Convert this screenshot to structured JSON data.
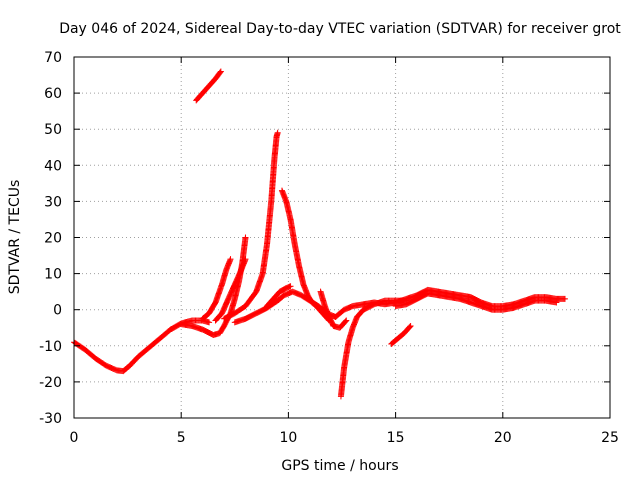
{
  "chart_data": {
    "type": "scatter",
    "title": "Day 046 of 2024, Sidereal Day-to-day VTEC variation (SDTVAR) for receiver grot",
    "xlabel": "GPS time / hours",
    "ylabel": "SDTVAR / TECUs",
    "xlim": [
      0,
      25
    ],
    "ylim": [
      -30,
      70
    ],
    "xticks": [
      0,
      5,
      10,
      15,
      20,
      25
    ],
    "yticks": [
      -30,
      -20,
      -10,
      0,
      10,
      20,
      30,
      40,
      50,
      60,
      70
    ],
    "grid": true,
    "marker": "+",
    "series": [
      {
        "name": "SDTVAR",
        "color": "#ff0000",
        "segments": [
          {
            "name": "main-trace",
            "points": [
              [
                0.0,
                -9
              ],
              [
                0.5,
                -11
              ],
              [
                1.0,
                -13.5
              ],
              [
                1.5,
                -15.5
              ],
              [
                2.0,
                -16.8
              ],
              [
                2.3,
                -17
              ],
              [
                2.6,
                -15.5
              ],
              [
                3.0,
                -13
              ],
              [
                3.5,
                -10.5
              ],
              [
                4.0,
                -8
              ],
              [
                4.5,
                -5.5
              ],
              [
                5.0,
                -3.8
              ],
              [
                5.5,
                -3
              ],
              [
                6.0,
                -3
              ],
              [
                6.3,
                -3.5
              ]
            ]
          },
          {
            "name": "dip-branch",
            "points": [
              [
                5.0,
                -4
              ],
              [
                5.5,
                -4.5
              ],
              [
                6.0,
                -5.5
              ],
              [
                6.5,
                -7
              ],
              [
                6.8,
                -6.5
              ],
              [
                7.0,
                -4.5
              ],
              [
                7.3,
                -1
              ],
              [
                7.5,
                3
              ],
              [
                7.7,
                8
              ],
              [
                7.85,
                13
              ],
              [
                8.0,
                20
              ]
            ]
          },
          {
            "name": "rise-branch-a",
            "points": [
              [
                6.0,
                -2.5
              ],
              [
                6.3,
                -1
              ],
              [
                6.6,
                2
              ],
              [
                6.9,
                7
              ],
              [
                7.1,
                11
              ],
              [
                7.3,
                14
              ]
            ]
          },
          {
            "name": "rise-branch-b",
            "points": [
              [
                6.6,
                -3
              ],
              [
                6.9,
                -1
              ],
              [
                7.2,
                3
              ],
              [
                7.5,
                7
              ],
              [
                7.8,
                11
              ],
              [
                8.0,
                14
              ]
            ]
          },
          {
            "name": "spike-rise",
            "points": [
              [
                7.0,
                -2.5
              ],
              [
                7.5,
                -1
              ],
              [
                8.0,
                1
              ],
              [
                8.5,
                5
              ],
              [
                8.8,
                10
              ],
              [
                9.0,
                18
              ],
              [
                9.2,
                30
              ],
              [
                9.35,
                42
              ],
              [
                9.45,
                48
              ],
              [
                9.5,
                49
              ]
            ]
          },
          {
            "name": "high-segment",
            "points": [
              [
                5.7,
                58
              ],
              [
                6.0,
                60
              ],
              [
                6.3,
                62
              ],
              [
                6.6,
                64
              ],
              [
                6.85,
                66
              ]
            ]
          },
          {
            "name": "decay-branch",
            "points": [
              [
                9.7,
                33
              ],
              [
                9.9,
                30
              ],
              [
                10.1,
                25
              ],
              [
                10.3,
                18
              ],
              [
                10.5,
                12
              ],
              [
                10.7,
                7
              ],
              [
                10.9,
                4
              ],
              [
                11.1,
                2
              ],
              [
                11.3,
                1
              ],
              [
                11.6,
                -1
              ],
              [
                11.9,
                -3
              ]
            ]
          },
          {
            "name": "low-branch",
            "points": [
              [
                7.5,
                -3.5
              ],
              [
                8.0,
                -2.5
              ],
              [
                8.5,
                -1
              ],
              [
                9.0,
                0.5
              ],
              [
                9.5,
                2.5
              ],
              [
                9.8,
                4
              ],
              [
                10.2,
                5
              ],
              [
                10.6,
                4
              ],
              [
                11.0,
                2.5
              ],
              [
                11.4,
                1
              ],
              [
                11.8,
                -1
              ],
              [
                12.2,
                -2
              ]
            ]
          },
          {
            "name": "mid-branch",
            "points": [
              [
                9.0,
                1
              ],
              [
                9.3,
                3
              ],
              [
                9.6,
                5
              ],
              [
                9.9,
                6
              ],
              [
                10.1,
                6.5
              ]
            ]
          },
          {
            "name": "notch-branch",
            "points": [
              [
                11.5,
                5
              ],
              [
                11.7,
                1
              ],
              [
                11.9,
                -2
              ],
              [
                12.1,
                -4.5
              ],
              [
                12.4,
                -5
              ],
              [
                12.7,
                -3
              ]
            ]
          },
          {
            "name": "deep-dip",
            "points": [
              [
                12.45,
                -24
              ],
              [
                12.6,
                -16
              ],
              [
                12.8,
                -9
              ],
              [
                13.0,
                -5
              ],
              [
                13.2,
                -2
              ],
              [
                13.5,
                0
              ],
              [
                14.0,
                1.5
              ],
              [
                14.5,
                2.5
              ],
              [
                15.0,
                2.5
              ],
              [
                15.5,
                2.5
              ]
            ]
          },
          {
            "name": "short-branch",
            "points": [
              [
                14.8,
                -9.5
              ],
              [
                15.1,
                -8
              ],
              [
                15.4,
                -6.5
              ],
              [
                15.7,
                -4.5
              ]
            ]
          },
          {
            "name": "recovery",
            "points": [
              [
                12.2,
                -2
              ],
              [
                12.6,
                0
              ],
              [
                13.0,
                1
              ],
              [
                13.5,
                1.5
              ],
              [
                14.0,
                2
              ],
              [
                14.5,
                1.5
              ],
              [
                15.0,
                2
              ],
              [
                15.5,
                3
              ],
              [
                16.0,
                4
              ],
              [
                16.5,
                5.5
              ],
              [
                17.0,
                5
              ],
              [
                17.5,
                4.5
              ],
              [
                18.0,
                4
              ],
              [
                18.5,
                3.5
              ],
              [
                19.0,
                2
              ],
              [
                19.5,
                1
              ],
              [
                20.0,
                1
              ],
              [
                20.5,
                1.5
              ],
              [
                21.0,
                2.5
              ],
              [
                21.5,
                3.5
              ],
              [
                22.0,
                3.5
              ],
              [
                22.5,
                3
              ],
              [
                22.9,
                3
              ]
            ]
          },
          {
            "name": "recovery-lower",
            "points": [
              [
                15.0,
                1
              ],
              [
                15.5,
                1.5
              ],
              [
                16.0,
                3
              ],
              [
                16.5,
                4.5
              ],
              [
                17.0,
                4
              ],
              [
                17.5,
                3.5
              ],
              [
                18.0,
                3
              ],
              [
                18.5,
                2
              ],
              [
                19.0,
                1
              ],
              [
                19.5,
                0
              ],
              [
                20.0,
                0
              ],
              [
                20.5,
                0.5
              ],
              [
                21.0,
                1.5
              ],
              [
                21.5,
                2.5
              ],
              [
                22.0,
                2.5
              ],
              [
                22.5,
                2
              ]
            ]
          }
        ]
      }
    ]
  }
}
